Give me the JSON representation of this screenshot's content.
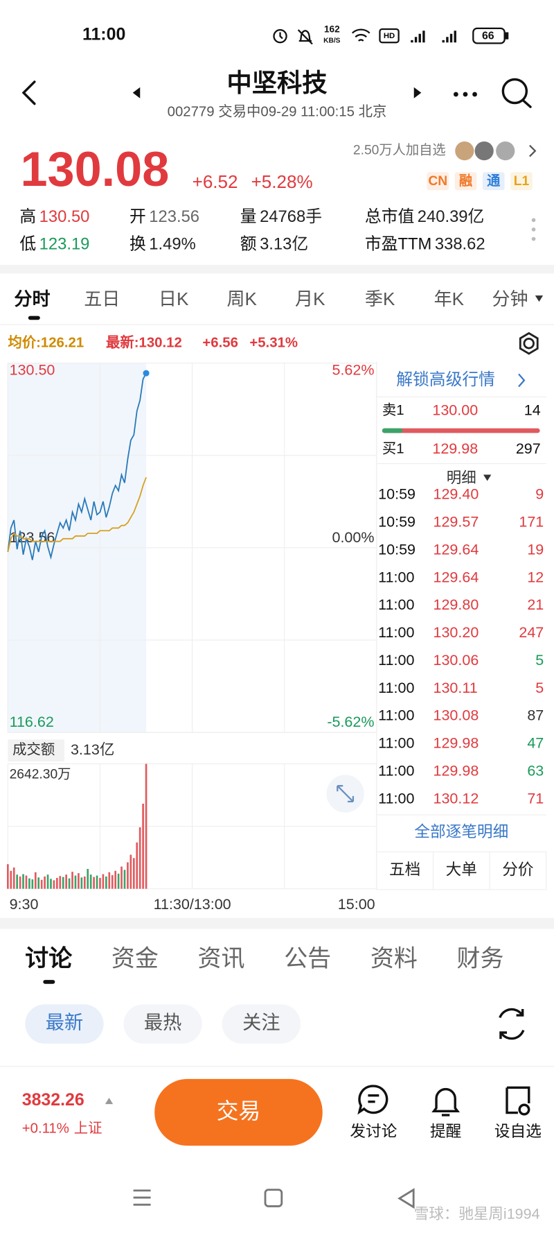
{
  "status_bar": {
    "time": "11:00",
    "net_speed": "162",
    "net_unit": "KB/S",
    "battery": "66"
  },
  "header": {
    "title": "中坚科技",
    "subtitle": "002779 交易中09-29 11:00:15 北京"
  },
  "quote": {
    "price": "130.08",
    "change": "+6.52",
    "change_pct": "+5.28%",
    "followers": "2.50万人加自选",
    "badges": [
      {
        "text": "CN",
        "color": "#f07a2a"
      },
      {
        "text": "融",
        "color": "#f07a2a"
      },
      {
        "text": "通",
        "color": "#2f7fd8"
      },
      {
        "text": "L1",
        "color": "#e8a317"
      }
    ],
    "stats": [
      {
        "label": "高",
        "value": "130.50",
        "color": "#e03a3e"
      },
      {
        "label": "开",
        "value": "123.56",
        "color": "#666666"
      },
      {
        "label": "量",
        "value": "24768手",
        "color": "#222222"
      },
      {
        "label": "总市值",
        "value": "240.39亿",
        "color": "#222222"
      },
      {
        "label": "低",
        "value": "123.19",
        "color": "#1a9a5a"
      },
      {
        "label": "换",
        "value": "1.49%",
        "color": "#222222"
      },
      {
        "label": "额",
        "value": "3.13亿",
        "color": "#222222"
      },
      {
        "label": "市盈TTM",
        "value": "338.62",
        "color": "#222222"
      }
    ]
  },
  "chart_tabs": [
    "分时",
    "五日",
    "日K",
    "周K",
    "月K",
    "季K",
    "年K",
    "分钟"
  ],
  "summary": {
    "avg": "均价:126.21",
    "latest": "最新:130.12",
    "change": "+6.56",
    "change_pct": "+5.31%"
  },
  "chart_data": [
    {
      "type": "line",
      "grid": true,
      "x": [
        0,
        2,
        4,
        6,
        8,
        10,
        12,
        14,
        16,
        18,
        20,
        22,
        24,
        26,
        28,
        30,
        32,
        34,
        36,
        38,
        40,
        42,
        44,
        46,
        48,
        50,
        52,
        54,
        56,
        58,
        60,
        62,
        64,
        66,
        68,
        70,
        72,
        74,
        76,
        78,
        80,
        82,
        84,
        86,
        88,
        90
      ],
      "xlim": [
        0,
        240
      ],
      "xticks": [
        {
          "value": 0,
          "label": "9:30"
        },
        {
          "value": 120,
          "label": "11:30/13:00"
        },
        {
          "value": 240,
          "label": "15:00"
        }
      ],
      "ylim": [
        116.62,
        130.5
      ],
      "yticks": [
        {
          "value": 116.62,
          "label": "116.62"
        },
        {
          "value": 123.56,
          "label": "123.56"
        },
        {
          "value": 130.5,
          "label": "130.50"
        }
      ],
      "y2lim": [
        -5.62,
        5.62
      ],
      "y2ticks": [
        {
          "value": -5.62,
          "label": "-5.62%"
        },
        {
          "value": 0,
          "label": "0.00%"
        },
        {
          "value": 5.62,
          "label": "5.62%"
        }
      ],
      "series": [
        {
          "color": "#2a7ab8",
          "values": [
            123.4,
            124.3,
            124.6,
            123.5,
            124.2,
            123.3,
            123.9,
            123.6,
            123.1,
            123.8,
            123.4,
            124.0,
            124.2,
            123.6,
            123.2,
            123.7,
            124.1,
            124.5,
            124.3,
            124.6,
            124.2,
            124.9,
            124.6,
            125.2,
            124.9,
            125.4,
            125.0,
            124.6,
            125.3,
            124.8,
            124.9,
            125.3,
            124.7,
            125.1,
            125.6,
            125.9,
            125.7,
            126.3,
            126.0,
            126.9,
            127.6,
            127.8,
            128.7,
            129.1,
            129.9,
            130.12
          ]
        },
        {
          "color": "#d8a020",
          "values": [
            123.4,
            123.9,
            124.1,
            124.0,
            124.0,
            123.9,
            123.9,
            123.9,
            123.8,
            123.8,
            123.8,
            123.8,
            123.8,
            123.8,
            123.8,
            123.8,
            123.8,
            123.8,
            123.9,
            123.9,
            123.9,
            123.9,
            124.0,
            124.0,
            124.0,
            124.0,
            124.1,
            124.1,
            124.1,
            124.1,
            124.2,
            124.2,
            124.2,
            124.2,
            124.3,
            124.3,
            124.3,
            124.4,
            124.4,
            124.5,
            124.7,
            124.9,
            125.2,
            125.5,
            125.9,
            126.21
          ]
        }
      ]
    },
    {
      "type": "bar",
      "title": "成交额",
      "subtitle": "3.13亿",
      "up_color": "#e05a5e",
      "down_color": "#3aa36a",
      "x": [
        0,
        2,
        4,
        6,
        8,
        10,
        12,
        14,
        16,
        18,
        20,
        22,
        24,
        26,
        28,
        30,
        32,
        34,
        36,
        38,
        40,
        42,
        44,
        46,
        48,
        50,
        52,
        54,
        56,
        58,
        60,
        62,
        64,
        66,
        68,
        70,
        72,
        74,
        76,
        78,
        80,
        82,
        84,
        86,
        88,
        90
      ],
      "xlim": [
        0,
        240
      ],
      "ylim": [
        0,
        2642.3
      ],
      "yticks": [
        {
          "value": 2642.3,
          "label": "2642.30万"
        }
      ],
      "values": [
        520,
        380,
        450,
        300,
        260,
        310,
        280,
        220,
        200,
        350,
        240,
        190,
        260,
        300,
        210,
        180,
        230,
        270,
        250,
        300,
        220,
        360,
        280,
        330,
        240,
        260,
        420,
        300,
        250,
        280,
        230,
        310,
        260,
        350,
        290,
        380,
        320,
        470,
        400,
        560,
        720,
        650,
        980,
        1300,
        1800,
        2642.3
      ]
    }
  ],
  "order_book": {
    "unlock": "解锁高级行情",
    "rows": [
      {
        "label": "卖1",
        "price": "130.00",
        "volume": "14"
      },
      {
        "label": "买1",
        "price": "129.98",
        "volume": "297"
      }
    ],
    "detail_title": "明细"
  },
  "trades": [
    {
      "time": "10:59",
      "price": "129.40",
      "volume": "9",
      "color": "#e03a3e"
    },
    {
      "time": "10:59",
      "price": "129.57",
      "volume": "171",
      "color": "#e03a3e"
    },
    {
      "time": "10:59",
      "price": "129.64",
      "volume": "19",
      "color": "#e03a3e"
    },
    {
      "time": "11:00",
      "price": "129.64",
      "volume": "12",
      "color": "#e03a3e"
    },
    {
      "time": "11:00",
      "price": "129.80",
      "volume": "21",
      "color": "#e03a3e"
    },
    {
      "time": "11:00",
      "price": "130.20",
      "volume": "247",
      "color": "#e03a3e"
    },
    {
      "time": "11:00",
      "price": "130.06",
      "volume": "5",
      "color": "#1a9a5a"
    },
    {
      "time": "11:00",
      "price": "130.11",
      "volume": "5",
      "color": "#e03a3e"
    },
    {
      "time": "11:00",
      "price": "130.08",
      "volume": "87",
      "color": "#333333"
    },
    {
      "time": "11:00",
      "price": "129.98",
      "volume": "47",
      "color": "#1a9a5a"
    },
    {
      "time": "11:00",
      "price": "129.98",
      "volume": "63",
      "color": "#1a9a5a"
    },
    {
      "time": "11:00",
      "price": "130.12",
      "volume": "71",
      "color": "#e03a3e"
    }
  ],
  "panel_footer": {
    "all": "全部逐笔明细",
    "tabs": [
      "五档",
      "大单",
      "分价"
    ]
  },
  "content_tabs": [
    "讨论",
    "资金",
    "资讯",
    "公告",
    "资料",
    "财务"
  ],
  "filters": [
    "最新",
    "最热",
    "关注"
  ],
  "bottom_bar": {
    "index_value": "3832.26",
    "index_change": "+0.11%",
    "index_name": "上证",
    "trade": "交易",
    "actions": [
      "发讨论",
      "提醒",
      "设自选"
    ]
  },
  "watermark": "雪球：驰星周i1994"
}
